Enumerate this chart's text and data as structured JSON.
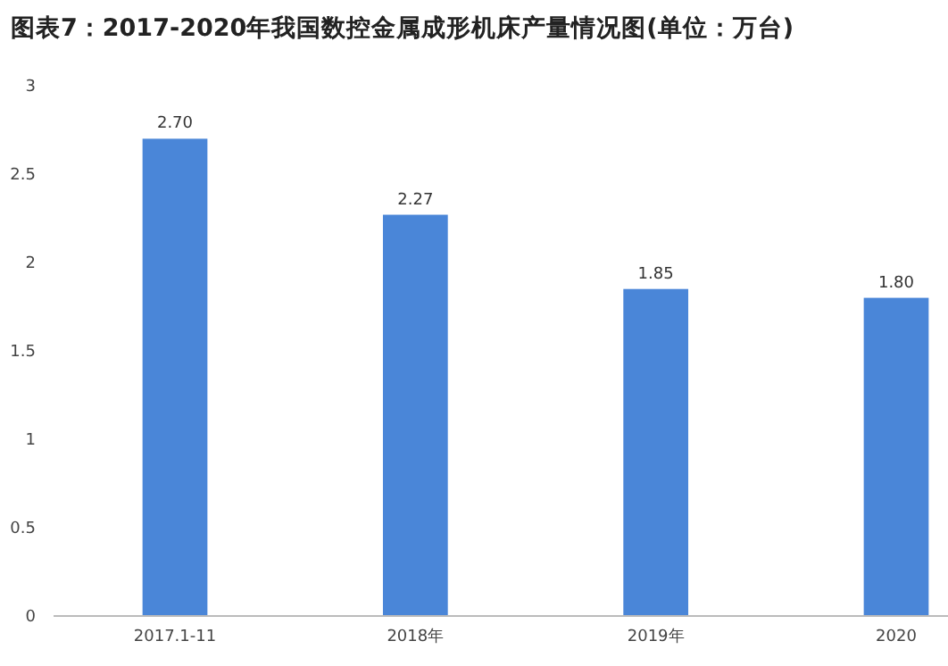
{
  "chart_data": {
    "type": "bar",
    "title": "图表7：2017-2020年我国数控金属成形机床产量情况图(单位：万台)",
    "categories": [
      "2017.1-11",
      "2018年",
      "2019年",
      "2020"
    ],
    "values": [
      2.7,
      2.27,
      1.85,
      1.8
    ],
    "value_labels": [
      "2.70",
      "2.27",
      "1.85",
      "1.80"
    ],
    "color": "#4a86d8",
    "ylim": [
      0,
      3
    ],
    "yticks": [
      0,
      0.5,
      1,
      1.5,
      2,
      2.5,
      3
    ],
    "grid": false
  }
}
